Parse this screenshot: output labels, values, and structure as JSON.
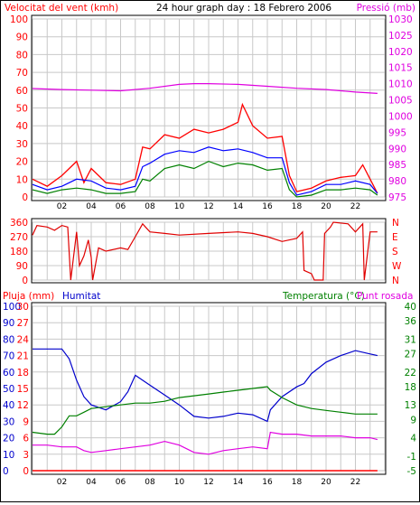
{
  "header": {
    "wind_label": "Velocitat del vent (kmh)",
    "title": "24 hour graph day : 18 Febrero 2006",
    "pressure_label": "Pressió (mb)"
  },
  "bottom_header": {
    "rain_label": "Pluja (mm)",
    "humidity_label": "Humitat",
    "temp_label": "Temperatura (°C)",
    "dew_label": "Punt rosada"
  },
  "colors": {
    "wind_gust": "#ff0000",
    "wind_avg": "#0000ff",
    "wind_min": "#008000",
    "pressure": "#e000e0",
    "direction": "#e00000",
    "humidity": "#0000cc",
    "temperature": "#008000",
    "dewpoint": "#e000e0",
    "rain": "#ff0000",
    "grid": "#c8c8c8"
  },
  "chart_data": [
    {
      "id": "wind",
      "type": "line",
      "x_label_hours": [
        "02",
        "04",
        "06",
        "08",
        "10",
        "12",
        "14",
        "16",
        "18",
        "20",
        "22"
      ],
      "ylim": [
        0,
        100
      ],
      "yticks": [
        0,
        10,
        20,
        30,
        40,
        50,
        60,
        70,
        80,
        90,
        100
      ],
      "ylim_right": [
        975,
        1030
      ],
      "yticks_right": [
        975,
        980,
        985,
        990,
        995,
        1000,
        1005,
        1010,
        1015,
        1020,
        1025,
        1030
      ],
      "series": [
        {
          "key": "gust",
          "x": [
            0,
            1,
            2,
            3,
            3.5,
            4,
            5,
            6,
            7,
            7.5,
            8,
            9,
            10,
            11,
            12,
            13,
            14,
            14.3,
            15,
            16,
            17,
            17.5,
            18,
            19,
            20,
            21,
            22,
            22.5,
            23,
            23.5
          ],
          "values": [
            10,
            6,
            12,
            20,
            8,
            16,
            8,
            7,
            10,
            28,
            27,
            35,
            33,
            38,
            36,
            38,
            42,
            52,
            40,
            33,
            34,
            12,
            3,
            5,
            9,
            11,
            12,
            18,
            10,
            2
          ]
        },
        {
          "key": "avg",
          "x": [
            0,
            1,
            2,
            3,
            4,
            5,
            6,
            7,
            7.5,
            8,
            9,
            10,
            11,
            12,
            13,
            14,
            15,
            16,
            17,
            17.5,
            18,
            19,
            20,
            21,
            22,
            23,
            23.5
          ],
          "values": [
            7,
            4,
            6,
            10,
            9,
            5,
            4,
            6,
            17,
            19,
            24,
            26,
            25,
            28,
            26,
            27,
            25,
            22,
            22,
            8,
            1,
            3,
            7,
            7,
            9,
            7,
            2
          ]
        },
        {
          "key": "min",
          "x": [
            0,
            1,
            2,
            3,
            4,
            5,
            6,
            7,
            7.5,
            8,
            9,
            10,
            11,
            12,
            13,
            14,
            15,
            16,
            17,
            17.5,
            18,
            19,
            20,
            21,
            22,
            23,
            23.5
          ],
          "values": [
            4,
            2,
            4,
            5,
            4,
            2,
            2,
            3,
            10,
            9,
            16,
            18,
            16,
            20,
            17,
            19,
            18,
            15,
            16,
            4,
            0,
            1,
            4,
            4,
            5,
            4,
            1
          ]
        },
        {
          "key": "pressure",
          "axis": "right",
          "x": [
            0,
            2,
            4,
            6,
            8,
            10,
            11,
            12,
            14,
            16,
            18,
            20,
            22,
            23.5
          ],
          "values": [
            1008.5,
            1008.2,
            1008,
            1007.8,
            1008.6,
            1009.8,
            1010,
            1010,
            1009.8,
            1009.2,
            1008.6,
            1008.2,
            1007.4,
            1007
          ]
        }
      ]
    },
    {
      "id": "direction",
      "type": "line",
      "ylim": [
        0,
        360
      ],
      "yticks": [
        0,
        90,
        180,
        270,
        360
      ],
      "compass_labels": [
        "N",
        "W",
        "S",
        "E",
        "N"
      ],
      "series": [
        {
          "key": "dir",
          "x": [
            0,
            0.3,
            1,
            1.5,
            2,
            2.4,
            2.6,
            3,
            3.2,
            3.5,
            3.8,
            4,
            4.1,
            4.5,
            5,
            6,
            6.5,
            7,
            7.5,
            8,
            9,
            10,
            12,
            14,
            15,
            16,
            17,
            18,
            18.4,
            18.5,
            19,
            19.2,
            19.8,
            19.9,
            20.3,
            20.5,
            21.5,
            22,
            22.5,
            22.6,
            23,
            23.5
          ],
          "values": [
            280,
            340,
            330,
            310,
            340,
            330,
            0,
            300,
            90,
            150,
            250,
            140,
            0,
            200,
            180,
            200,
            190,
            270,
            350,
            300,
            290,
            280,
            290,
            300,
            290,
            270,
            240,
            260,
            300,
            60,
            40,
            0,
            0,
            290,
            330,
            360,
            350,
            300,
            350,
            0,
            300,
            300
          ]
        }
      ]
    },
    {
      "id": "climate",
      "type": "line",
      "ylim": [
        0,
        100
      ],
      "yticks_left_humidity": [
        0,
        10,
        20,
        30,
        40,
        50,
        60,
        70,
        80,
        90,
        100
      ],
      "yticks_left_rain": [
        0,
        3,
        6,
        9,
        12,
        15,
        18,
        21,
        24,
        27,
        30
      ],
      "ylim_right": [
        -5,
        40
      ],
      "yticks_right": [
        -5,
        -1,
        4,
        9,
        13,
        18,
        22,
        27,
        31,
        36,
        40
      ],
      "series": [
        {
          "key": "humidity",
          "x": [
            0,
            1,
            2,
            2.5,
            3,
            3.5,
            4,
            5,
            6,
            6.5,
            7,
            8,
            9,
            10,
            11,
            12,
            13,
            14,
            15,
            16,
            16.2,
            17,
            18,
            18.5,
            19,
            20,
            21,
            22,
            23,
            23.5
          ],
          "values": [
            74,
            74,
            74,
            68,
            55,
            45,
            40,
            37,
            42,
            48,
            58,
            52,
            46,
            40,
            33,
            32,
            33,
            35,
            34,
            30,
            37,
            45,
            51,
            53,
            59,
            66,
            70,
            73,
            71,
            70
          ]
        },
        {
          "key": "temperature",
          "x": [
            0,
            1,
            1.5,
            2,
            2.5,
            3,
            3.5,
            4,
            5,
            6,
            7,
            8,
            9,
            10,
            11,
            12,
            13,
            14,
            15,
            16,
            16.2,
            17,
            18,
            19,
            20,
            21,
            22,
            23,
            23.5
          ],
          "values": [
            5.5,
            5,
            5,
            7,
            10,
            10,
            11,
            12,
            12.5,
            13,
            13.5,
            13.5,
            14,
            15,
            15.5,
            16,
            16.5,
            17,
            17.5,
            18,
            17,
            15,
            13,
            12,
            11.5,
            11,
            10.5,
            10.5,
            10.5
          ]
        },
        {
          "key": "dewpoint",
          "x": [
            0,
            1,
            2,
            3,
            3.5,
            4,
            5,
            6,
            7,
            8,
            9,
            10,
            11,
            12,
            13,
            14,
            15,
            16,
            16.2,
            17,
            18,
            19,
            20,
            21,
            22,
            23,
            23.5
          ],
          "values": [
            2,
            2,
            1.5,
            1.5,
            0.5,
            0,
            0.5,
            1,
            1.5,
            2,
            3,
            2,
            0,
            -0.5,
            0.5,
            1,
            1.5,
            1,
            5.5,
            5,
            5,
            4.5,
            4.5,
            4.5,
            4,
            4,
            3.5
          ]
        },
        {
          "key": "rain",
          "x": [
            0,
            23.5
          ],
          "values": [
            0,
            0
          ]
        }
      ]
    }
  ]
}
